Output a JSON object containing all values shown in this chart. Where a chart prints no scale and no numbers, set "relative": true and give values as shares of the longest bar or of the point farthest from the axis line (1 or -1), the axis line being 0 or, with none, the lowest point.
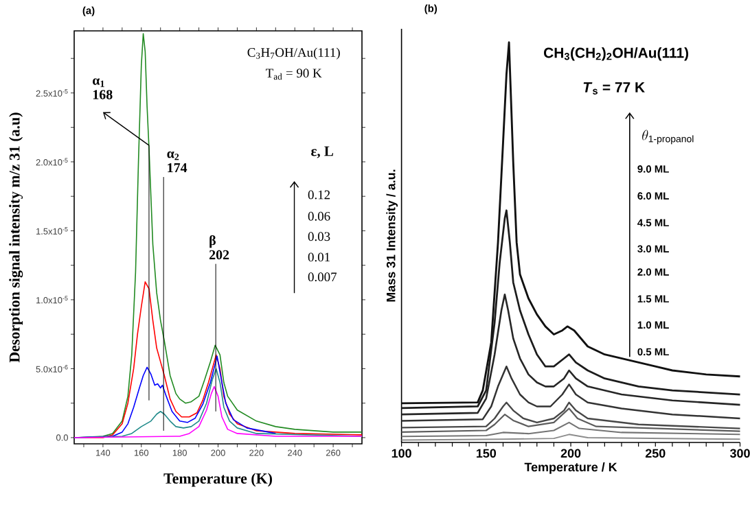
{
  "chart_data": [
    {
      "type": "line",
      "title": "(a)",
      "xlabel": "Temperature (K)",
      "ylabel": "Desorption signal intensity m/z 31 (a.u)",
      "xlim": [
        125,
        275
      ],
      "ylim": [
        -4.5e-07,
        2.95e-05
      ],
      "xticks": [
        {
          "value": 130,
          "label": null
        },
        140,
        {
          "value": 150,
          "label": null
        },
        160,
        {
          "value": 170,
          "label": null
        },
        180,
        {
          "value": 190,
          "label": null
        },
        200,
        {
          "value": 210,
          "label": null
        },
        220,
        {
          "value": 230,
          "label": null
        },
        240,
        {
          "value": 250,
          "label": null
        },
        260,
        {
          "value": 270,
          "label": null
        }
      ],
      "yticks": [
        {
          "value": 0,
          "label": "0.0"
        },
        {
          "value": 2.5e-06,
          "label": null
        },
        {
          "value": 5e-06,
          "label": "5.0x10$^{-6}$"
        },
        {
          "value": 7.5e-06,
          "label": null
        },
        {
          "value": 1e-05,
          "label": "1.0x10$^{-5}$"
        },
        {
          "value": 1.25e-05,
          "label": null
        },
        {
          "value": 1.5e-05,
          "label": "1.5x10$^{-5}$"
        },
        {
          "value": 1.75e-05,
          "label": null
        },
        {
          "value": 2e-05,
          "label": "2.0x10$^{-5}$"
        },
        {
          "value": 2.25e-05,
          "label": null
        },
        {
          "value": 2.5e-05,
          "label": "2.5x10$^{-5}$"
        },
        {
          "value": 2.75e-05,
          "label": null
        }
      ],
      "x": [
        125,
        140,
        145,
        150,
        153,
        155,
        157,
        158.5,
        160,
        161,
        162,
        163,
        164,
        166,
        168,
        170,
        172,
        175,
        178,
        180,
        183,
        186,
        190,
        193,
        196,
        198.5,
        201,
        203,
        205,
        210,
        220,
        230,
        240,
        260,
        275
      ],
      "series": [
        {
          "color": "#218a21",
          "values": [
            0,
            1e-07,
            3e-07,
            1.2e-06,
            3e-06,
            6e-06,
            1.2e-05,
            2e-05,
            2.7e-05,
            2.93e-05,
            2.8e-05,
            2.4e-05,
            2.1e-05,
            1.4e-05,
            1.05e-05,
            8.5e-06,
            7e-06,
            4.5e-06,
            3.2e-06,
            2.8e-06,
            2.5e-06,
            2.6e-06,
            3e-06,
            4.2e-06,
            5.5e-06,
            6.7e-06,
            6e-06,
            4e-06,
            3e-06,
            2e-06,
            1.2e-06,
            8e-07,
            6e-07,
            4e-07,
            4e-07
          ]
        },
        {
          "color": "#ff0000",
          "x": [
            125,
            140,
            145,
            150,
            153,
            156,
            158,
            160,
            162,
            164,
            166,
            168,
            170,
            172,
            175,
            178,
            181,
            185,
            189,
            192,
            195,
            199,
            201,
            203,
            206,
            210,
            220,
            240,
            275
          ],
          "values": [
            0,
            0,
            2e-07,
            1e-06,
            2.5e-06,
            5e-06,
            7.5e-06,
            9.5e-06,
            1.13e-05,
            1.08e-05,
            8.5e-06,
            6.5e-06,
            5.5e-06,
            4.5e-06,
            2.8e-06,
            1.9e-06,
            1.5e-06,
            1.5e-06,
            1.8e-06,
            2.7e-06,
            4e-06,
            6e-06,
            5e-06,
            3e-06,
            1.7e-06,
            1e-06,
            5e-07,
            3e-07,
            2e-07
          ]
        },
        {
          "color": "#0000ff",
          "x": [
            125,
            145,
            150,
            153,
            156,
            159,
            161,
            163,
            165,
            167,
            168.5,
            170,
            171,
            173,
            176,
            180,
            184,
            188,
            192,
            196,
            199.5,
            202,
            204,
            208,
            215,
            230
          ],
          "values": [
            0,
            1e-07,
            4e-07,
            1e-06,
            2.2e-06,
            3.6e-06,
            4.5e-06,
            5.1e-06,
            4.6e-06,
            3.8e-06,
            3.9e-06,
            3.6e-06,
            3.8e-06,
            3e-06,
            1.9e-06,
            1.2e-06,
            1.1e-06,
            1.4e-06,
            2.4e-06,
            4e-06,
            5.9e-06,
            4e-06,
            2.5e-06,
            1.3e-06,
            7e-07,
            3e-07
          ]
        },
        {
          "color": "#1f8a8a",
          "x": [
            125,
            150,
            155,
            160,
            165,
            168,
            170,
            172,
            175,
            178,
            182,
            186,
            190,
            194,
            197,
            199,
            201,
            203,
            206,
            210,
            220,
            275
          ],
          "values": [
            0,
            1e-07,
            3e-07,
            8e-07,
            1.2e-06,
            1.7e-06,
            1.9e-06,
            1.7e-06,
            1.2e-06,
            8e-07,
            7e-07,
            8e-07,
            1.2e-06,
            2.5e-06,
            4.2e-06,
            5e-06,
            4e-06,
            2.2e-06,
            1.2e-06,
            7e-07,
            3e-07,
            1e-07
          ]
        },
        {
          "color": "#ff00ff",
          "x": [
            125,
            180,
            185,
            190,
            194,
            196.5,
            198,
            200,
            202,
            205,
            210,
            230,
            275
          ],
          "values": [
            0,
            1e-07,
            3e-07,
            8e-07,
            2e-06,
            3.2e-06,
            3.7e-06,
            3e-06,
            1.5e-06,
            6e-07,
            3e-07,
            1e-07,
            1e-07
          ]
        }
      ],
      "ref_lines": [
        {
          "axis": "x",
          "value": 164,
          "label": "α$_{1}$ 168"
        },
        {
          "axis": "x",
          "value": 171.6,
          "label": "α$_{2}$ 174"
        },
        {
          "axis": "x",
          "value": 198.8,
          "label": "β 202"
        }
      ],
      "annotations": [
        "C$_{3}$H$_{7}$OH/Au(111)",
        "T$_{ad}$ = 90 K",
        "ε, L",
        "0.12",
        "0.06",
        "0.03",
        "0.01",
        "0.007"
      ]
    },
    {
      "type": "line",
      "title": "(b)",
      "xlabel": "Temperature / K",
      "ylabel": "Mass 31 Intensity / a.u.",
      "relative": true,
      "xlim": [
        100,
        300
      ],
      "xticks": [
        100,
        {
          "value": 110,
          "label": null
        },
        {
          "value": 120,
          "label": null
        },
        {
          "value": 130,
          "label": null
        },
        {
          "value": 140,
          "label": null
        },
        150,
        {
          "value": 160,
          "label": null
        },
        {
          "value": 170,
          "label": null
        },
        {
          "value": 180,
          "label": null
        },
        {
          "value": 190,
          "label": null
        },
        200,
        {
          "value": 210,
          "label": null
        },
        {
          "value": 220,
          "label": null
        },
        {
          "value": 230,
          "label": null
        },
        {
          "value": 240,
          "label": null
        },
        250,
        {
          "value": 260,
          "label": null
        },
        {
          "value": 270,
          "label": null
        },
        {
          "value": 280,
          "label": null
        },
        {
          "value": 290,
          "label": null
        },
        300
      ],
      "series": [
        {
          "color": "#111111",
          "x": [
            100,
            145,
            148,
            153,
            157,
            160,
            162,
            163.5,
            166,
            168,
            170,
            175,
            180,
            185,
            190,
            195,
            198,
            202,
            210,
            220,
            230,
            240,
            250,
            260,
            280,
            300
          ],
          "values": [
            0.098,
            0.1,
            0.13,
            0.25,
            0.5,
            0.75,
            0.92,
            1.0,
            0.7,
            0.5,
            0.42,
            0.36,
            0.32,
            0.29,
            0.27,
            0.28,
            0.29,
            0.28,
            0.24,
            0.22,
            0.21,
            0.2,
            0.19,
            0.18,
            0.17,
            0.165
          ]
        },
        {
          "color": "#1c1c1c",
          "x": [
            100,
            145,
            150,
            155,
            158,
            161,
            162,
            164,
            166,
            170,
            175,
            180,
            185,
            190,
            196,
            199,
            203,
            210,
            220,
            240,
            260,
            300
          ],
          "values": [
            0.086,
            0.09,
            0.13,
            0.3,
            0.45,
            0.56,
            0.58,
            0.5,
            0.4,
            0.33,
            0.27,
            0.22,
            0.19,
            0.19,
            0.21,
            0.22,
            0.2,
            0.18,
            0.16,
            0.14,
            0.13,
            0.12
          ]
        },
        {
          "color": "#262626",
          "x": [
            100,
            145,
            150,
            155,
            159,
            161,
            163,
            166,
            170,
            175,
            180,
            185,
            190,
            196,
            199,
            203,
            210,
            230,
            260,
            300
          ],
          "values": [
            0.07,
            0.074,
            0.11,
            0.22,
            0.33,
            0.37,
            0.33,
            0.26,
            0.21,
            0.17,
            0.15,
            0.14,
            0.14,
            0.16,
            0.18,
            0.16,
            0.14,
            0.12,
            0.105,
            0.094
          ]
        },
        {
          "color": "#333333",
          "x": [
            100,
            148,
            153,
            157,
            160,
            162,
            165,
            170,
            175,
            180,
            188,
            195,
            199,
            203,
            210,
            230,
            260,
            300
          ],
          "values": [
            0.054,
            0.058,
            0.09,
            0.14,
            0.17,
            0.19,
            0.16,
            0.12,
            0.1,
            0.09,
            0.09,
            0.12,
            0.145,
            0.12,
            0.1,
            0.085,
            0.07,
            0.06
          ]
        },
        {
          "color": "#474747",
          "x": [
            100,
            150,
            155,
            160,
            162,
            166,
            172,
            180,
            190,
            196,
            199,
            203,
            210,
            240,
            300
          ],
          "values": [
            0.037,
            0.04,
            0.06,
            0.09,
            0.1,
            0.08,
            0.06,
            0.05,
            0.06,
            0.08,
            0.1,
            0.08,
            0.06,
            0.045,
            0.035
          ]
        },
        {
          "color": "#5c5c5c",
          "x": [
            100,
            150,
            155,
            161,
            166,
            175,
            190,
            199,
            204,
            215,
            300
          ],
          "values": [
            0.026,
            0.03,
            0.045,
            0.07,
            0.055,
            0.04,
            0.05,
            0.085,
            0.06,
            0.04,
            0.028
          ]
        },
        {
          "color": "#747474",
          "x": [
            100,
            150,
            160,
            175,
            190,
            199,
            205,
            230,
            300
          ],
          "values": [
            0.015,
            0.017,
            0.025,
            0.022,
            0.03,
            0.05,
            0.035,
            0.025,
            0.02
          ]
        },
        {
          "color": "#8c8c8c",
          "x": [
            100,
            160,
            190,
            199,
            210,
            300
          ],
          "values": [
            0.006,
            0.008,
            0.01,
            0.02,
            0.012,
            0.008
          ]
        }
      ],
      "annotations": [
        "CH$_{3}$(CH$_{2}$)$_{2}$OH/Au(111)",
        "*T*$_{s}$ = 77 K",
        "\\theta_{\\text{1-propanol}}",
        "9.0 ML",
        "6.0 ML",
        "4.5 ML",
        "3.0 ML",
        "2.0 ML",
        "1.5 ML",
        "1.0 ML",
        "0.5 ML"
      ]
    }
  ]
}
